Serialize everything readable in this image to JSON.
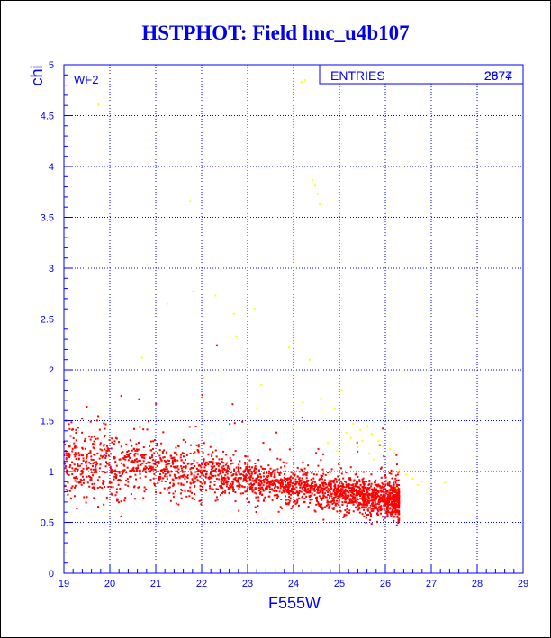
{
  "chart_data": {
    "type": "scatter",
    "title": "HSTPHOT: Field lmc_u4b107",
    "xlabel": "F555W",
    "ylabel": "chi",
    "xlim": [
      19,
      29
    ],
    "ylim": [
      0,
      5
    ],
    "xticks": [
      "19",
      "20",
      "21",
      "22",
      "23",
      "24",
      "25",
      "26",
      "27",
      "28",
      "29"
    ],
    "yticks": [
      "0",
      "0.5",
      "1",
      "1.5",
      "2",
      "2.5",
      "3",
      "3.5",
      "4",
      "4.5",
      "5"
    ],
    "grid": true,
    "annotation": "WF2",
    "stats": {
      "label": "ENTRIES",
      "values": [
        "2677",
        "2874"
      ]
    },
    "colors": {
      "main": "#ff0000",
      "outlier": "#ffff00",
      "axis": "#0000ff",
      "grid": "#0000ff"
    },
    "series": [
      {
        "color": "#ffff00",
        "points": [
          [
            19.75,
            4.61
          ],
          [
            24.17,
            4.83
          ],
          [
            24.25,
            4.85
          ],
          [
            21.75,
            3.66
          ],
          [
            24.41,
            3.87
          ],
          [
            24.47,
            3.81
          ],
          [
            24.52,
            3.73
          ],
          [
            24.57,
            3.63
          ],
          [
            23.0,
            3.18
          ],
          [
            21.8,
            2.77
          ],
          [
            22.3,
            2.73
          ],
          [
            21.25,
            2.65
          ],
          [
            23.15,
            2.6
          ],
          [
            22.7,
            2.55
          ],
          [
            22.75,
            2.33
          ],
          [
            23.9,
            2.22
          ],
          [
            20.7,
            2.12
          ],
          [
            24.35,
            2.1
          ],
          [
            22.05,
            1.92
          ],
          [
            23.3,
            1.85
          ],
          [
            25.05,
            1.8
          ],
          [
            24.6,
            1.72
          ],
          [
            23.2,
            1.62
          ],
          [
            24.2,
            1.68
          ],
          [
            24.9,
            1.62
          ],
          [
            25.3,
            1.47
          ],
          [
            25.45,
            1.41
          ],
          [
            25.6,
            1.44
          ],
          [
            25.7,
            1.37
          ],
          [
            25.85,
            1.3
          ],
          [
            25.95,
            1.25
          ],
          [
            26.1,
            1.22
          ],
          [
            25.5,
            1.3
          ],
          [
            25.25,
            1.33
          ],
          [
            26.2,
            1.18
          ],
          [
            25.75,
            1.12
          ],
          [
            26.05,
            1.08
          ],
          [
            26.3,
            1.02
          ],
          [
            26.45,
            0.97
          ],
          [
            26.6,
            0.93
          ],
          [
            26.8,
            0.9
          ],
          [
            27.3,
            0.89
          ],
          [
            26.95,
            0.84
          ],
          [
            24.75,
            1.28
          ],
          [
            25.15,
            1.38
          ],
          [
            25.4,
            1.24
          ],
          [
            25.65,
            1.18
          ],
          [
            24.95,
            1.2
          ],
          [
            26.25,
            0.84
          ],
          [
            26.7,
            0.87
          ]
        ]
      }
    ]
  }
}
